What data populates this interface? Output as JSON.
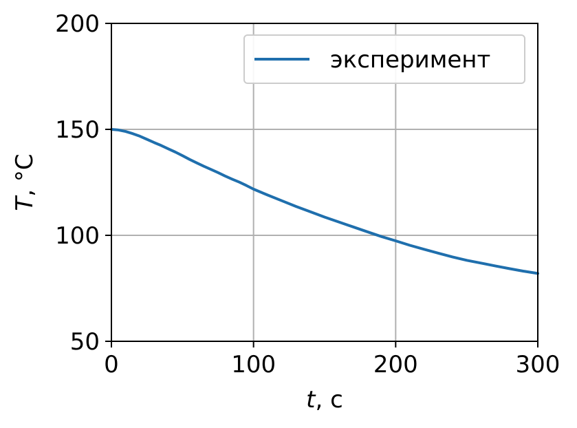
{
  "chart_data": {
    "type": "line",
    "title": "",
    "xlabel_var": "t",
    "xlabel_unit": ", с",
    "ylabel_var": "T",
    "ylabel_unit": ", °C",
    "xlim": [
      0,
      300
    ],
    "ylim": [
      50,
      200
    ],
    "xticks": [
      0,
      100,
      200,
      300
    ],
    "yticks": [
      50,
      100,
      150,
      200
    ],
    "xtick_labels": [
      "0",
      "100",
      "200",
      "300"
    ],
    "ytick_labels": [
      "50",
      "100",
      "150",
      "200"
    ],
    "grid": true,
    "legend_position": "top-right",
    "series": [
      {
        "name": "эксперимент",
        "color": "#1f6fad",
        "x": [
          0,
          5,
          10,
          15,
          20,
          25,
          30,
          35,
          40,
          45,
          50,
          55,
          60,
          65,
          70,
          75,
          80,
          85,
          90,
          95,
          100,
          110,
          120,
          130,
          140,
          150,
          160,
          170,
          180,
          190,
          200,
          210,
          220,
          230,
          240,
          250,
          260,
          270,
          280,
          290,
          300
        ],
        "y": [
          150,
          149.7,
          149,
          148,
          146.8,
          145.3,
          143.8,
          142.4,
          140.8,
          139.3,
          137.6,
          135.8,
          134.2,
          132.6,
          131.1,
          129.6,
          128.0,
          126.5,
          125.1,
          123.5,
          121.8,
          119.0,
          116.3,
          113.6,
          111.1,
          108.6,
          106.3,
          104.0,
          101.7,
          99.4,
          97.4,
          95.3,
          93.4,
          91.6,
          89.8,
          88.2,
          86.9,
          85.6,
          84.3,
          83.1,
          82.0
        ]
      }
    ]
  }
}
